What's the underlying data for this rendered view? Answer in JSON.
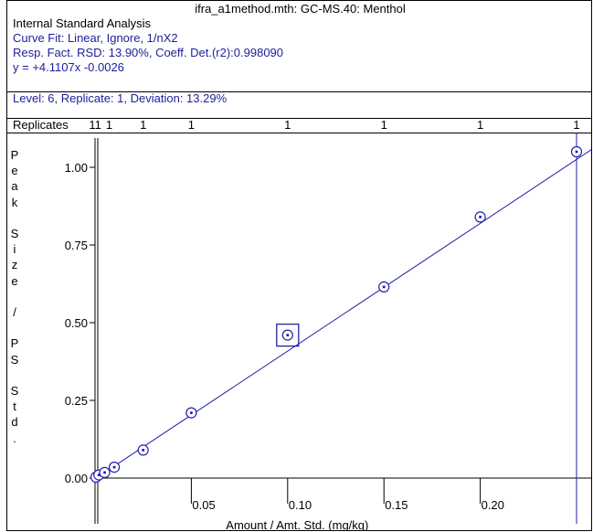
{
  "header": {
    "title": "ifra_a1method.mth:  GC-MS.40:  Menthol",
    "analysis": "Internal Standard Analysis",
    "curve_fit": "Curve Fit: Linear, Ignore, 1/nX2",
    "resp_fact": "Resp. Fact. RSD:  13.90%,    Coeff. Det.(r2):0.998090",
    "equation": "y =  +4.1107x -0.0026",
    "level": "Level:  6,  Replicate:  1,  Deviation:  13.29%"
  },
  "replicates": {
    "label": "Replicates",
    "counts": [
      "1",
      "1",
      "1",
      "1",
      "1",
      "1",
      "1",
      "1",
      "1",
      "1",
      "1"
    ]
  },
  "y_axis_letters": [
    "P",
    "e",
    "a",
    "k",
    "",
    "S",
    "i",
    "z",
    "e",
    "",
    "/",
    "",
    "P",
    "S",
    "",
    "S",
    "t",
    "d",
    "."
  ],
  "colors": {
    "curve": "#1f1fb0",
    "axis": "#000000",
    "text_blue": "#1e1e9a"
  },
  "chart_data": {
    "type": "scatter",
    "title": "",
    "xlabel": "Amount / Amt. Std. (mg/kg)",
    "ylabel": "Peak Size / PS Std.",
    "x_ticks": [
      {
        "value": 0.05,
        "label": "0.05"
      },
      {
        "value": 0.1,
        "label": "0.10"
      },
      {
        "value": 0.15,
        "label": "0.15"
      },
      {
        "value": 0.2,
        "label": "0.20"
      }
    ],
    "y_ticks": [
      {
        "value": 0.0,
        "label": "0.00"
      },
      {
        "value": 0.25,
        "label": "0.25"
      },
      {
        "value": 0.5,
        "label": "0.50"
      },
      {
        "value": 0.75,
        "label": "0.75"
      },
      {
        "value": 1.0,
        "label": "1.00"
      }
    ],
    "xlim": [
      0,
      0.26
    ],
    "ylim": [
      -0.05,
      1.12
    ],
    "fit": {
      "slope": 4.1107,
      "intercept": -0.0026
    },
    "series": [
      {
        "x": [
          0.0005,
          0.002,
          0.005,
          0.01,
          0.025,
          0.05,
          0.1,
          0.15,
          0.2,
          0.25
        ],
        "y": [
          0.003,
          0.01,
          0.018,
          0.035,
          0.09,
          0.21,
          0.46,
          0.615,
          0.84,
          1.05
        ]
      }
    ],
    "selected_point": {
      "x": 0.1,
      "y": 0.46
    },
    "highlight_x": 0.25
  }
}
